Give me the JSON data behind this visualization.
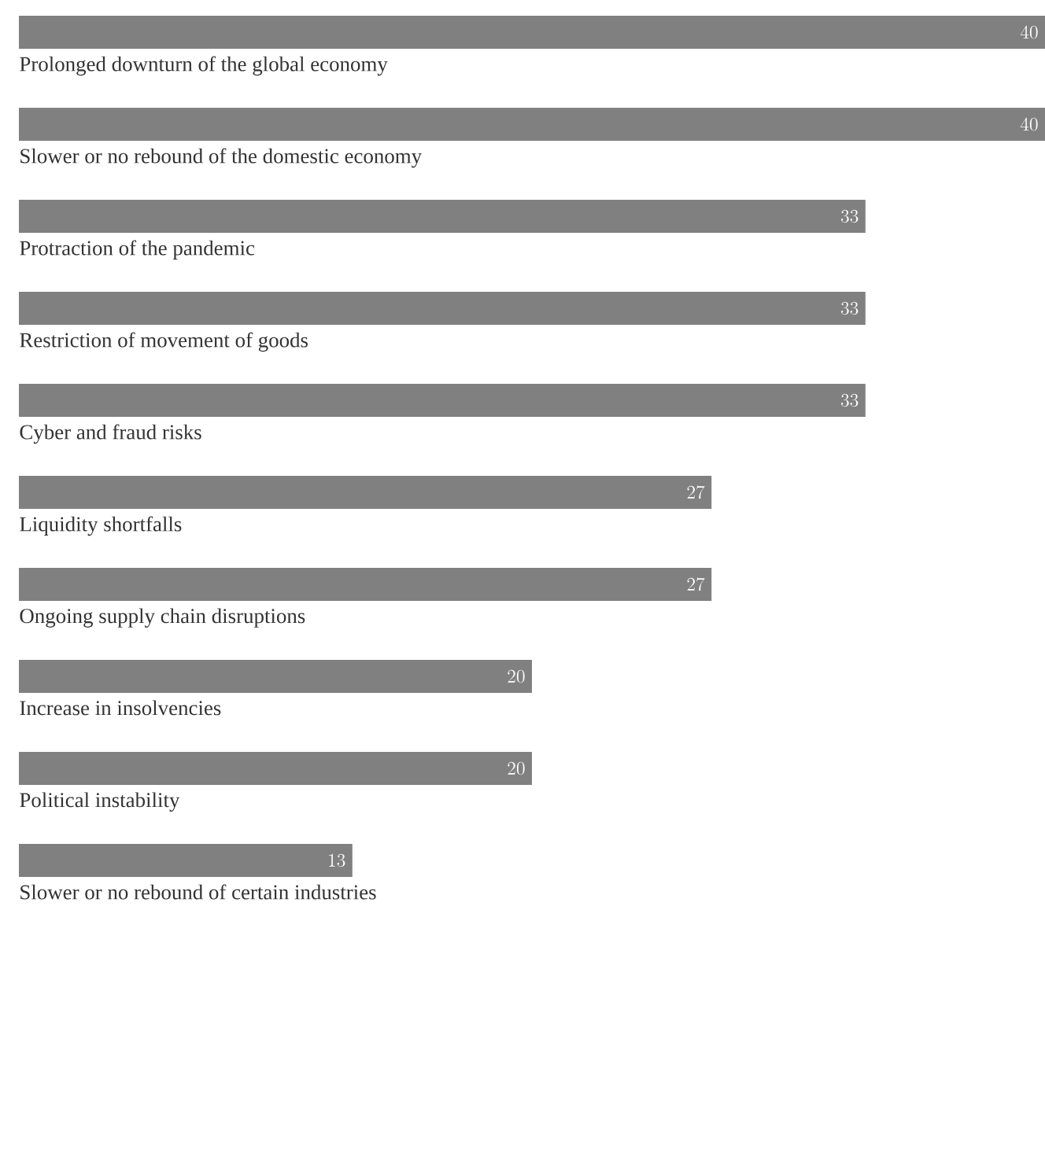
{
  "chart_data": {
    "type": "bar",
    "orientation": "horizontal",
    "categories": [
      "Prolonged downturn of the global economy",
      "Slower or no rebound of the domestic economy",
      "Protraction of the pandemic",
      "Restriction of movement of goods",
      "Cyber and fraud risks",
      "Liquidity shortfalls",
      "Ongoing supply chain disruptions",
      "Increase in insolvencies",
      "Political instability",
      "Slower or no rebound of certain industries"
    ],
    "values": [
      40,
      40,
      33,
      33,
      33,
      27,
      27,
      20,
      20,
      13
    ],
    "color": "#808080",
    "data_labels": true
  }
}
